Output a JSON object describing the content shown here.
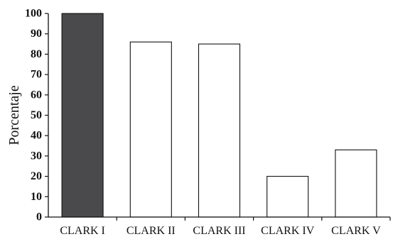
{
  "chart_data": {
    "type": "bar",
    "categories": [
      "CLARK I",
      "CLARK II",
      "CLARK III",
      "CLARK IV",
      "CLARK V"
    ],
    "values": [
      100,
      86,
      85,
      20,
      33
    ],
    "title": "",
    "xlabel": "",
    "ylabel": "Porcentaje",
    "ylim": [
      0,
      100
    ],
    "yticks": [
      0,
      10,
      20,
      30,
      40,
      50,
      60,
      70,
      80,
      90,
      100
    ],
    "grid": false,
    "legend": "none",
    "colors": [
      "#4a4a4d",
      "#ffffff",
      "#ffffff",
      "#ffffff",
      "#ffffff"
    ],
    "bar_edge_color": "#111111"
  }
}
